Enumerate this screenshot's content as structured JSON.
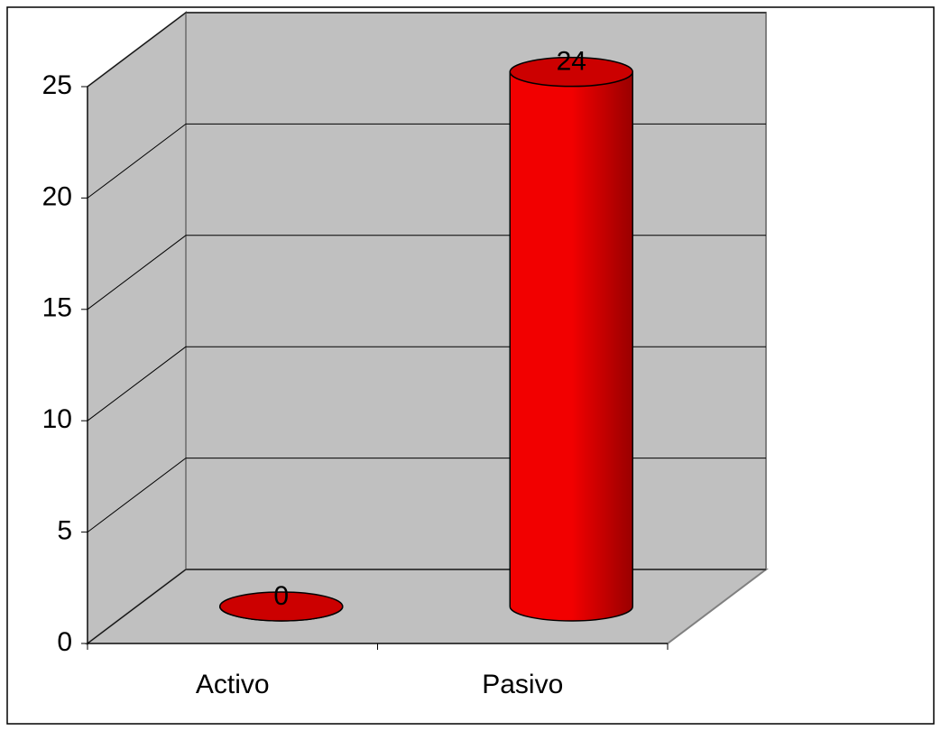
{
  "chart_data": {
    "type": "cylinder",
    "categories": [
      "Activo",
      "Pasivo"
    ],
    "values": [
      0,
      24
    ],
    "color": "#ff0000",
    "ylim": [
      0,
      25
    ],
    "yticks": [
      0,
      5,
      10,
      15,
      20,
      25
    ],
    "grid": true
  }
}
